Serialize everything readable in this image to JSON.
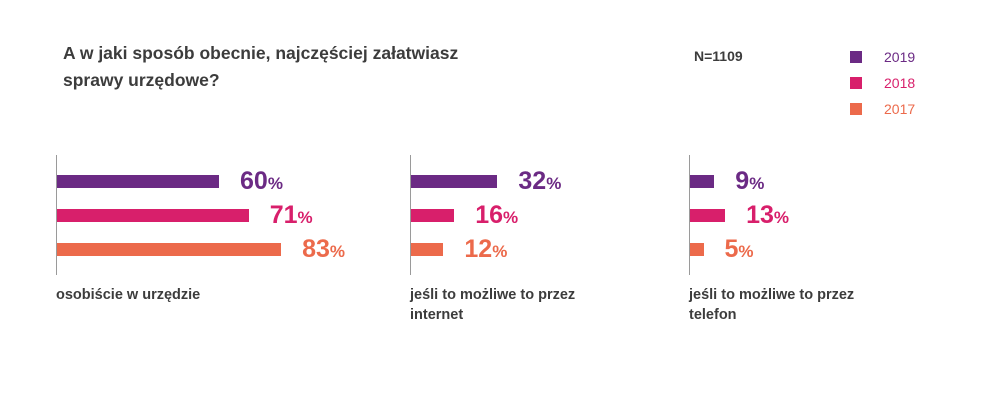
{
  "title": "A w jaki sposób obecnie, najczęściej załatwiasz sprawy urzędowe?",
  "sample_size": "N=1109",
  "colors": {
    "2019": "#6b2a84",
    "2018": "#d81f6b",
    "2017": "#ec6a4b"
  },
  "legend": [
    {
      "label": "2019",
      "color": "#6b2a84"
    },
    {
      "label": "2018",
      "color": "#d81f6b"
    },
    {
      "label": "2017",
      "color": "#ec6a4b"
    }
  ],
  "chart_data": {
    "type": "bar",
    "orientation": "horizontal",
    "title": "A w jaki sposób obecnie, najczęściej załatwiasz sprawy urzędowe?",
    "categories": [
      "osobiście w urzędzie",
      "jeśli to możliwe to przez internet",
      "jeśli to możliwe to przez telefon"
    ],
    "series": [
      {
        "name": "2019",
        "values": [
          60,
          32,
          9
        ]
      },
      {
        "name": "2018",
        "values": [
          71,
          16,
          13
        ]
      },
      {
        "name": "2017",
        "values": [
          83,
          12,
          5
        ]
      }
    ],
    "unit": "%",
    "value_labels": [
      [
        "60",
        "71",
        "83"
      ],
      [
        "32",
        "16",
        "12"
      ],
      [
        "9",
        "13",
        "5"
      ]
    ],
    "legend_position": "top-right",
    "grid": false
  }
}
